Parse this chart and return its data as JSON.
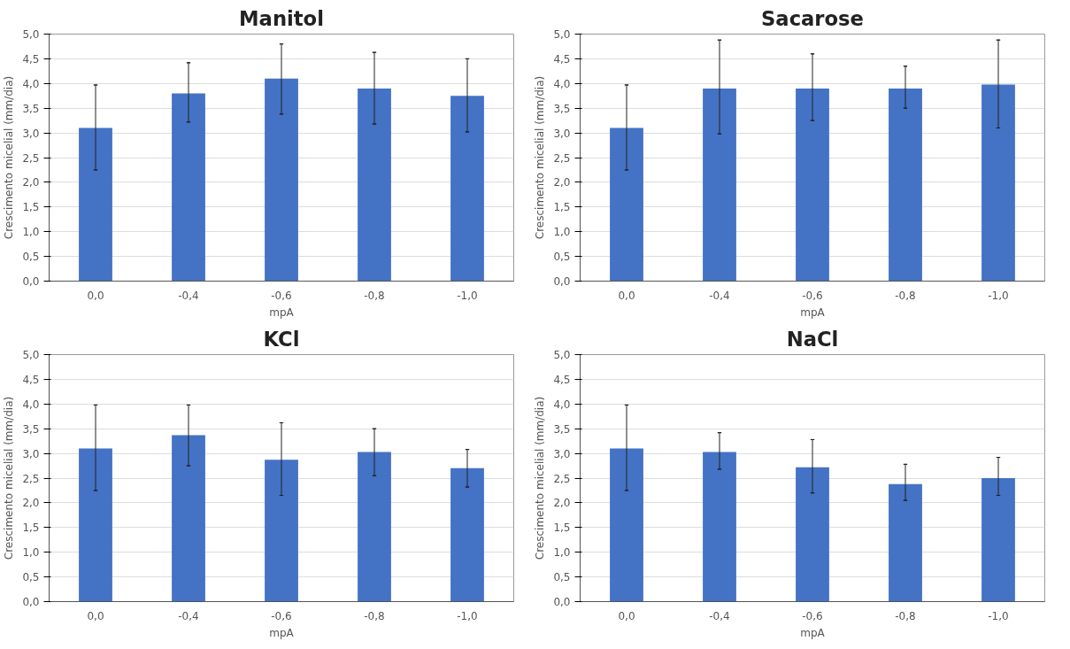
{
  "chart_data": [
    {
      "type": "bar",
      "title": "Manitol",
      "xlabel": "mpA",
      "ylabel": "Crescimento micelial (mm/dia)",
      "categories": [
        "0,0",
        "-0,4",
        "-0,6",
        "-0,8",
        "-1,0"
      ],
      "values": [
        3.1,
        3.8,
        4.1,
        3.9,
        3.75
      ],
      "errors": [
        [
          2.25,
          3.97
        ],
        [
          3.22,
          4.42
        ],
        [
          3.38,
          4.8
        ],
        [
          3.18,
          4.63
        ],
        [
          3.02,
          4.5
        ]
      ],
      "color": "#4472c4",
      "ylim": [
        0,
        5
      ],
      "yticks": [
        {
          "value": 0,
          "label": "0,0"
        },
        {
          "value": 0.5,
          "label": "0,5"
        },
        {
          "value": 1,
          "label": "1,0"
        },
        {
          "value": 1.5,
          "label": "1,5"
        },
        {
          "value": 2,
          "label": "2,0"
        },
        {
          "value": 2.5,
          "label": "2,5"
        },
        {
          "value": 3,
          "label": "3,0"
        },
        {
          "value": 3.5,
          "label": "3,5"
        },
        {
          "value": 4,
          "label": "4,0"
        },
        {
          "value": 4.5,
          "label": "4,5"
        },
        {
          "value": 5,
          "label": "5,0"
        }
      ],
      "grid": "y"
    },
    {
      "type": "bar",
      "title": "Sacarose",
      "xlabel": "mpA",
      "ylabel": "Crescimento micelial (mm/dia)",
      "categories": [
        "0,0",
        "-0,4",
        "-0,6",
        "-0,8",
        "-1,0"
      ],
      "values": [
        3.1,
        3.9,
        3.9,
        3.9,
        3.98
      ],
      "errors": [
        [
          2.25,
          3.97
        ],
        [
          2.98,
          4.88
        ],
        [
          3.25,
          4.6
        ],
        [
          3.5,
          4.35
        ],
        [
          3.1,
          4.88
        ]
      ],
      "color": "#4472c4",
      "ylim": [
        0,
        5
      ],
      "yticks": [
        {
          "value": 0,
          "label": "0,0"
        },
        {
          "value": 0.5,
          "label": "0,5"
        },
        {
          "value": 1,
          "label": "1,0"
        },
        {
          "value": 1.5,
          "label": "1,5"
        },
        {
          "value": 2,
          "label": "2,0"
        },
        {
          "value": 2.5,
          "label": "2,5"
        },
        {
          "value": 3,
          "label": "3,0"
        },
        {
          "value": 3.5,
          "label": "3,5"
        },
        {
          "value": 4,
          "label": "4,0"
        },
        {
          "value": 4.5,
          "label": "4,5"
        },
        {
          "value": 5,
          "label": "5,0"
        }
      ],
      "grid": "y"
    },
    {
      "type": "bar",
      "title": "KCl",
      "xlabel": "mpA",
      "ylabel": "Crescimento micelial (mm/dia)",
      "categories": [
        "0,0",
        "-0,4",
        "-0,6",
        "-0,8",
        "-1,0"
      ],
      "values": [
        3.1,
        3.37,
        2.87,
        3.03,
        2.7
      ],
      "errors": [
        [
          2.25,
          3.98
        ],
        [
          2.75,
          3.98
        ],
        [
          2.15,
          3.62
        ],
        [
          2.55,
          3.5
        ],
        [
          2.32,
          3.08
        ]
      ],
      "color": "#4472c4",
      "ylim": [
        0,
        5
      ],
      "yticks": [
        {
          "value": 0,
          "label": "0,0"
        },
        {
          "value": 0.5,
          "label": "0,5"
        },
        {
          "value": 1,
          "label": "1,0"
        },
        {
          "value": 1.5,
          "label": "1,5"
        },
        {
          "value": 2,
          "label": "2,0"
        },
        {
          "value": 2.5,
          "label": "2,5"
        },
        {
          "value": 3,
          "label": "3,0"
        },
        {
          "value": 3.5,
          "label": "3,5"
        },
        {
          "value": 4,
          "label": "4,0"
        },
        {
          "value": 4.5,
          "label": "4,5"
        },
        {
          "value": 5,
          "label": "5,0"
        }
      ],
      "grid": "y"
    },
    {
      "type": "bar",
      "title": "NaCl",
      "xlabel": "mpA",
      "ylabel": "Crescimento micelial (mm/dia)",
      "categories": [
        "0,0",
        "-0,4",
        "-0,6",
        "-0,8",
        "-1,0"
      ],
      "values": [
        3.1,
        3.03,
        2.72,
        2.38,
        2.5
      ],
      "errors": [
        [
          2.25,
          3.98
        ],
        [
          2.68,
          3.42
        ],
        [
          2.2,
          3.28
        ],
        [
          2.05,
          2.78
        ],
        [
          2.15,
          2.92
        ]
      ],
      "color": "#4472c4",
      "ylim": [
        0,
        5
      ],
      "yticks": [
        {
          "value": 0,
          "label": "0,0"
        },
        {
          "value": 0.5,
          "label": "0,5"
        },
        {
          "value": 1,
          "label": "1,0"
        },
        {
          "value": 1.5,
          "label": "1,5"
        },
        {
          "value": 2,
          "label": "2,0"
        },
        {
          "value": 2.5,
          "label": "2,5"
        },
        {
          "value": 3,
          "label": "3,0"
        },
        {
          "value": 3.5,
          "label": "3,5"
        },
        {
          "value": 4,
          "label": "4,0"
        },
        {
          "value": 4.5,
          "label": "4,5"
        },
        {
          "value": 5,
          "label": "5,0"
        }
      ],
      "grid": "y"
    }
  ]
}
